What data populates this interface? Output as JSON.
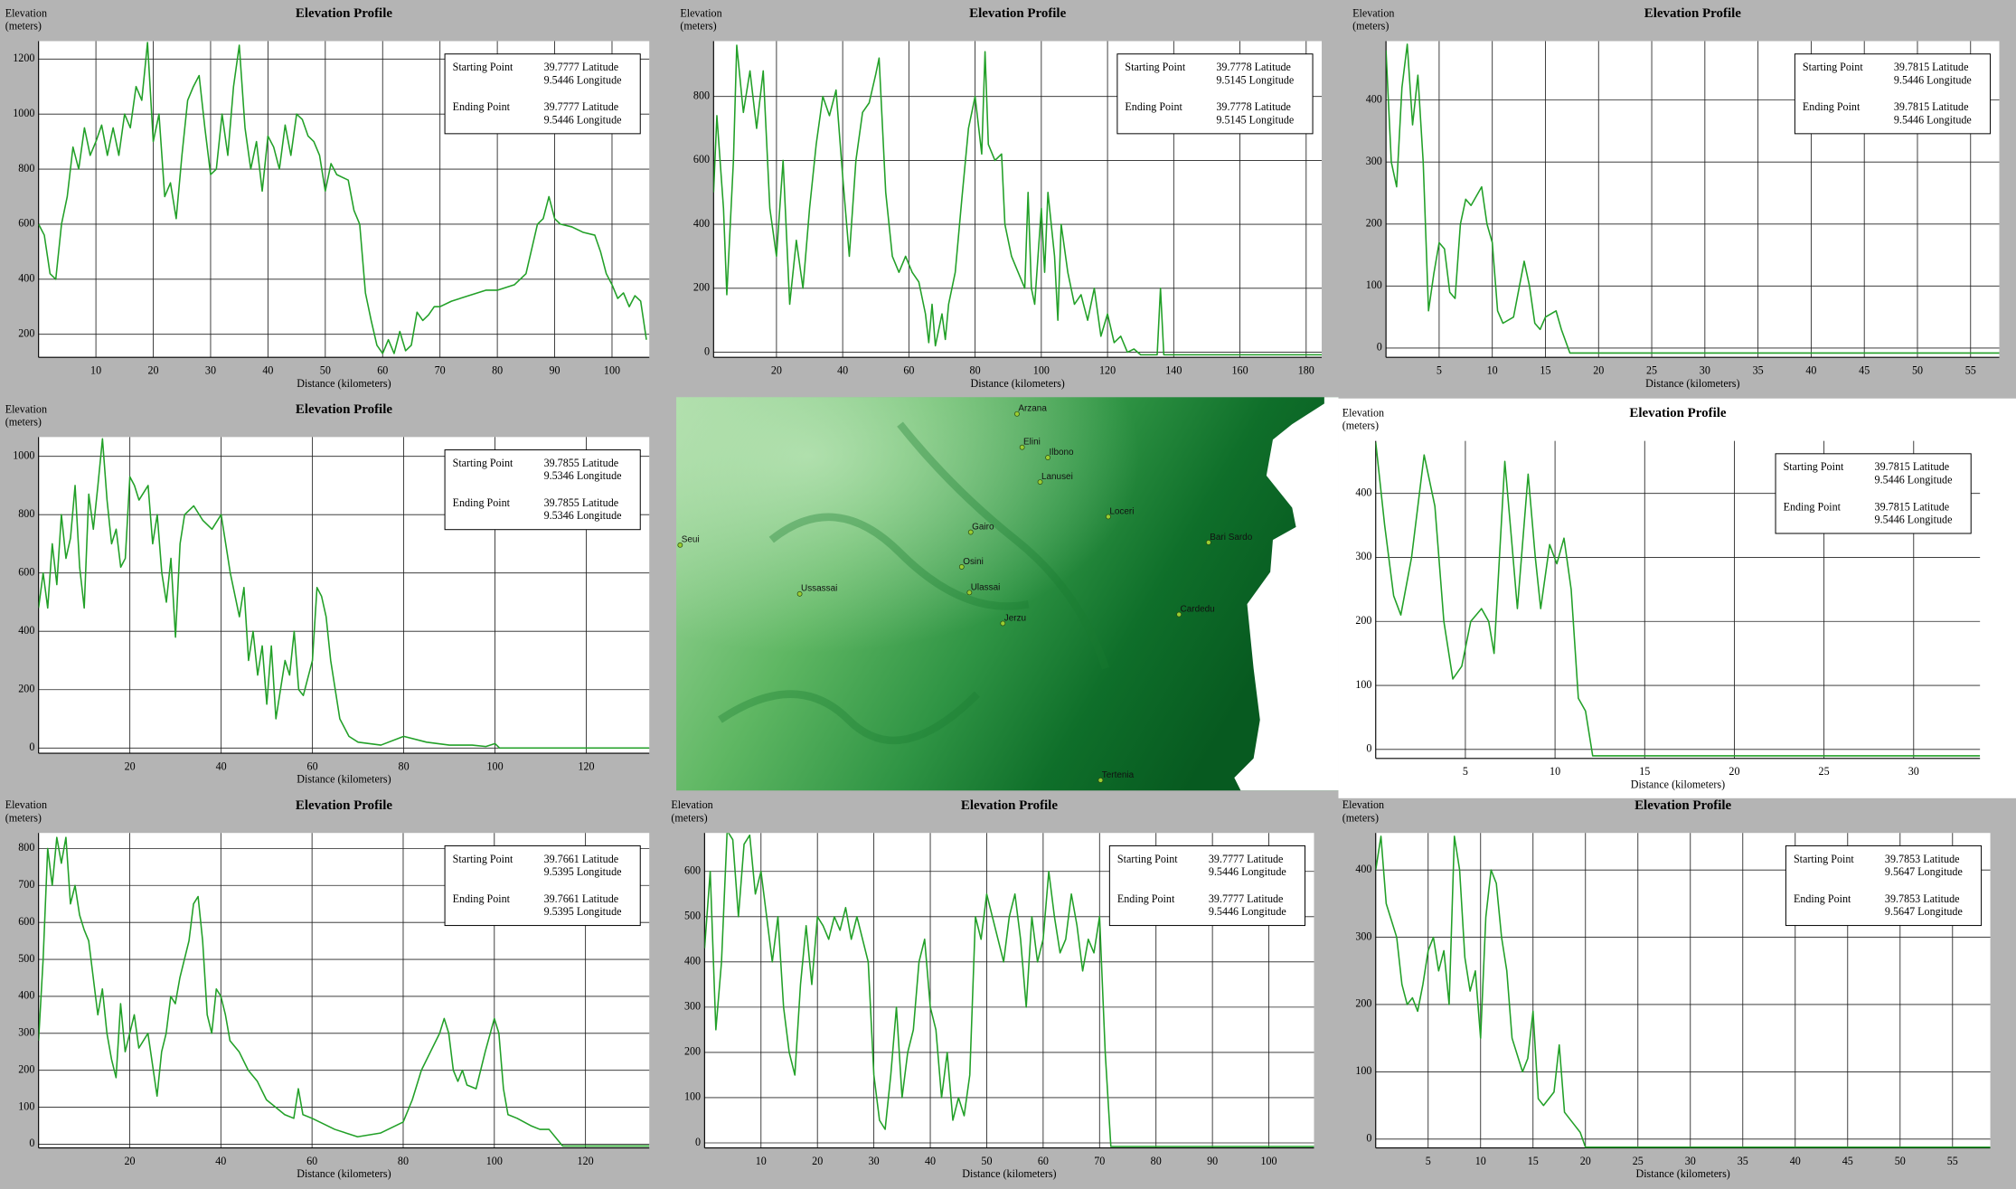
{
  "chart_data": [
    {
      "type": "line",
      "title": "Elevation Profile",
      "ylabel": [
        "Elevation",
        "(meters)"
      ],
      "xlabel": "Distance (kilometers)",
      "color": "#22a028",
      "grid": true,
      "info": {
        "start_label": "Starting Point",
        "start_lat": "39.7777 Latitude",
        "start_lon": "9.5446 Longitude",
        "end_label": "Ending Point",
        "end_lat": "39.7777 Latitude",
        "end_lon": "9.5446 Longitude"
      },
      "xlim": [
        0,
        106.5
      ],
      "xticks": [
        10,
        20,
        30,
        40,
        50,
        60,
        70,
        80,
        90,
        100
      ],
      "ylim": [
        116,
        1265
      ],
      "yticks": [
        200,
        400,
        600,
        800,
        1000,
        1200
      ],
      "x": [
        0,
        1,
        2,
        3,
        4,
        5,
        6,
        7,
        8,
        9,
        10,
        11,
        12,
        13,
        14,
        15,
        16,
        17,
        18,
        19,
        20,
        21,
        22,
        23,
        24,
        25,
        26,
        27,
        28,
        29,
        30,
        31,
        32,
        33,
        34,
        35,
        36,
        37,
        38,
        39,
        40,
        41,
        42,
        43,
        44,
        45,
        46,
        47,
        48,
        49,
        50,
        51,
        52,
        53,
        54,
        55,
        56,
        57,
        58,
        59,
        60,
        61,
        62,
        63,
        64,
        65,
        66,
        67,
        68,
        69,
        70,
        72,
        75,
        78,
        80,
        83,
        85,
        87,
        88,
        89,
        90,
        91,
        93,
        95,
        97,
        98,
        99,
        100,
        101,
        102,
        103,
        104,
        105,
        106
      ],
      "values": [
        600,
        560,
        420,
        400,
        600,
        700,
        880,
        800,
        950,
        850,
        900,
        960,
        850,
        950,
        850,
        1000,
        950,
        1100,
        1050,
        1260,
        900,
        1000,
        700,
        750,
        620,
        850,
        1050,
        1100,
        1140,
        950,
        780,
        800,
        1000,
        850,
        1100,
        1250,
        950,
        800,
        900,
        720,
        920,
        880,
        800,
        960,
        850,
        1000,
        980,
        920,
        900,
        850,
        720,
        820,
        780,
        770,
        760,
        650,
        600,
        350,
        250,
        160,
        130,
        180,
        130,
        210,
        140,
        160,
        280,
        250,
        270,
        300,
        300,
        320,
        340,
        360,
        360,
        380,
        420,
        600,
        620,
        700,
        620,
        600,
        590,
        570,
        560,
        500,
        420,
        380,
        330,
        350,
        300,
        340,
        320,
        180
      ]
    },
    {
      "type": "line",
      "title": "Elevation Profile",
      "ylabel": [
        "Elevation",
        "(meters)"
      ],
      "xlabel": "Distance (kilometers)",
      "color": "#22a028",
      "grid": true,
      "info": {
        "start_label": "Starting Point",
        "start_lat": "39.7778 Latitude",
        "start_lon": "9.5145 Longitude",
        "end_label": "Ending Point",
        "end_lat": "39.7778 Latitude",
        "end_lon": "9.5145 Longitude"
      },
      "xlim": [
        1,
        184.7
      ],
      "xticks": [
        20,
        40,
        60,
        80,
        100,
        120,
        140,
        160,
        180
      ],
      "ylim": [
        -16,
        973
      ],
      "yticks": [
        0,
        200,
        400,
        600,
        800
      ],
      "x": [
        1,
        2,
        4,
        5,
        7,
        8,
        10,
        12,
        14,
        16,
        18,
        20,
        22,
        24,
        26,
        28,
        30,
        32,
        34,
        36,
        38,
        40,
        42,
        44,
        46,
        48,
        50,
        51,
        53,
        55,
        57,
        59,
        61,
        63,
        65,
        66,
        67,
        68,
        70,
        71,
        72,
        74,
        76,
        78,
        80,
        82,
        83,
        84,
        86,
        88,
        89,
        91,
        93,
        95,
        96,
        97,
        98,
        100,
        101,
        102,
        104,
        105,
        106,
        108,
        110,
        112,
        114,
        116,
        118,
        120,
        122,
        124,
        126,
        128,
        130,
        135,
        136,
        137,
        184.7
      ],
      "values": [
        500,
        740,
        450,
        180,
        600,
        960,
        750,
        880,
        700,
        880,
        450,
        300,
        600,
        150,
        350,
        200,
        450,
        650,
        800,
        740,
        820,
        550,
        300,
        600,
        750,
        780,
        870,
        920,
        500,
        300,
        250,
        300,
        250,
        220,
        120,
        30,
        150,
        20,
        120,
        40,
        150,
        250,
        480,
        700,
        800,
        620,
        940,
        650,
        600,
        620,
        400,
        300,
        250,
        200,
        500,
        200,
        150,
        450,
        250,
        500,
        300,
        100,
        400,
        250,
        150,
        180,
        100,
        200,
        50,
        120,
        30,
        50,
        0,
        10,
        -8,
        -8,
        200,
        -8,
        -8
      ]
    },
    {
      "type": "line",
      "title": "Elevation Profile",
      "ylabel": [
        "Elevation",
        "(meters)"
      ],
      "xlabel": "Distance (kilometers)",
      "color": "#22a028",
      "grid": true,
      "info": {
        "start_label": "Starting Point",
        "start_lat": "39.7815 Latitude",
        "start_lon": "9.5446 Longitude",
        "end_label": "Ending Point",
        "end_lat": "39.7815 Latitude",
        "end_lon": "9.5446 Longitude"
      },
      "xlim": [
        0,
        57.7
      ],
      "xticks": [
        5,
        10,
        15,
        20,
        25,
        30,
        35,
        40,
        45,
        50,
        55
      ],
      "ylim": [
        -15,
        495
      ],
      "yticks": [
        0,
        100,
        200,
        300,
        400
      ],
      "x": [
        0,
        0.5,
        1,
        1.5,
        2,
        2.5,
        3,
        3.5,
        4,
        4.5,
        5,
        5.5,
        6,
        6.5,
        7,
        7.5,
        8,
        9,
        9.5,
        10,
        10.5,
        11,
        12,
        13,
        13.5,
        14,
        14.5,
        15,
        16,
        16.5,
        17.3,
        57.7
      ],
      "values": [
        480,
        300,
        260,
        420,
        490,
        360,
        440,
        300,
        60,
        120,
        170,
        160,
        90,
        80,
        200,
        240,
        230,
        260,
        200,
        170,
        60,
        40,
        50,
        140,
        100,
        40,
        30,
        50,
        60,
        30,
        -8,
        -8
      ]
    },
    {
      "type": "line",
      "title": "Elevation Profile",
      "ylabel": [
        "Elevation",
        "(meters)"
      ],
      "xlabel": "Distance (kilometers)",
      "color": "#22a028",
      "grid": true,
      "info": {
        "start_label": "Starting Point",
        "start_lat": "39.7855 Latitude",
        "start_lon": "9.5346 Longitude",
        "end_label": "Ending Point",
        "end_lat": "39.7855 Latitude",
        "end_lon": "9.5346 Longitude"
      },
      "xlim": [
        0,
        133.8
      ],
      "xticks": [
        20,
        40,
        60,
        80,
        100,
        120
      ],
      "ylim": [
        -18,
        1066
      ],
      "yticks": [
        0,
        200,
        400,
        600,
        800,
        1000
      ],
      "x": [
        0,
        1,
        2,
        3,
        4,
        5,
        6,
        7,
        8,
        9,
        10,
        11,
        12,
        13,
        14,
        15,
        16,
        17,
        18,
        19,
        20,
        21,
        22,
        24,
        25,
        26,
        27,
        28,
        29,
        30,
        31,
        32,
        34,
        36,
        38,
        40,
        41,
        42,
        44,
        45,
        46,
        47,
        48,
        49,
        50,
        51,
        52,
        53,
        54,
        55,
        56,
        57,
        58,
        60,
        61,
        62,
        63,
        64,
        65,
        66,
        68,
        70,
        75,
        80,
        85,
        90,
        95,
        98,
        100,
        101,
        133.8
      ],
      "values": [
        480,
        600,
        480,
        700,
        560,
        800,
        650,
        720,
        900,
        620,
        480,
        870,
        750,
        900,
        1060,
        850,
        700,
        750,
        620,
        650,
        930,
        900,
        850,
        900,
        700,
        800,
        600,
        500,
        650,
        380,
        700,
        800,
        830,
        780,
        750,
        800,
        700,
        600,
        450,
        550,
        300,
        400,
        250,
        350,
        150,
        350,
        100,
        200,
        300,
        250,
        400,
        200,
        180,
        300,
        550,
        520,
        450,
        300,
        200,
        100,
        40,
        20,
        10,
        40,
        20,
        10,
        10,
        5,
        15,
        0,
        0
      ]
    },
    {
      "type": "line",
      "title": "Elevation Profile",
      "ylabel": [
        "Elevation",
        "(meters)"
      ],
      "xlabel": "Distance (kilometers)",
      "color": "#22a028",
      "grid": true,
      "info": {
        "start_label": "Starting Point",
        "start_lat": "39.7815 Latitude",
        "start_lon": "9.5446 Longitude",
        "end_label": "Ending Point",
        "end_lat": "39.7815 Latitude",
        "end_lon": "9.5446 Longitude"
      },
      "xlim": [
        0,
        33.7
      ],
      "xticks": [
        5,
        10,
        15,
        20,
        25,
        30
      ],
      "ylim": [
        -14,
        482
      ],
      "yticks": [
        0,
        100,
        200,
        300,
        400
      ],
      "x": [
        0,
        0.5,
        1,
        1.4,
        2,
        2.7,
        3.3,
        3.8,
        4.3,
        4.8,
        5.3,
        5.9,
        6.3,
        6.6,
        7.2,
        7.6,
        7.9,
        8.5,
        8.9,
        9.2,
        9.7,
        10.1,
        10.5,
        10.9,
        11.3,
        11.7,
        12.1,
        33.7
      ],
      "values": [
        480,
        350,
        240,
        210,
        300,
        460,
        380,
        200,
        110,
        130,
        200,
        220,
        200,
        150,
        450,
        320,
        220,
        430,
        300,
        220,
        320,
        290,
        330,
        250,
        80,
        60,
        -10,
        -10
      ]
    },
    {
      "type": "line",
      "title": "Elevation Profile",
      "ylabel": [
        "Elevation",
        "(meters)"
      ],
      "xlabel": "Distance (kilometers)",
      "color": "#22a028",
      "grid": true,
      "info": {
        "start_label": "Starting Point",
        "start_lat": "39.7661 Latitude",
        "start_lon": "9.5395 Longitude",
        "end_label": "Ending Point",
        "end_lat": "39.7661 Latitude",
        "end_lon": "9.5395 Longitude"
      },
      "xlim": [
        0,
        134
      ],
      "xticks": [
        20,
        40,
        60,
        80,
        100,
        120
      ],
      "ylim": [
        -10,
        842
      ],
      "yticks": [
        0,
        100,
        200,
        300,
        400,
        500,
        600,
        700,
        800
      ],
      "x": [
        0,
        1,
        2,
        3,
        4,
        5,
        6,
        7,
        8,
        9,
        10,
        11,
        12,
        13,
        14,
        15,
        16,
        17,
        18,
        19,
        20,
        21,
        22,
        24,
        26,
        27,
        28,
        29,
        30,
        31,
        32,
        33,
        34,
        35,
        36,
        37,
        38,
        39,
        40,
        41,
        42,
        44,
        46,
        48,
        50,
        52,
        54,
        56,
        57,
        58,
        60,
        65,
        70,
        75,
        80,
        82,
        84,
        86,
        88,
        89,
        90,
        91,
        92,
        93,
        94,
        96,
        98,
        100,
        101,
        102,
        103,
        105,
        108,
        110,
        112,
        114,
        115,
        134
      ],
      "values": [
        280,
        500,
        800,
        700,
        830,
        760,
        830,
        650,
        700,
        620,
        580,
        550,
        450,
        350,
        420,
        300,
        230,
        180,
        380,
        250,
        300,
        350,
        260,
        300,
        130,
        250,
        300,
        400,
        380,
        450,
        500,
        550,
        650,
        670,
        550,
        350,
        300,
        420,
        400,
        350,
        280,
        250,
        200,
        170,
        120,
        100,
        80,
        70,
        150,
        80,
        70,
        40,
        20,
        30,
        60,
        120,
        200,
        250,
        300,
        340,
        300,
        200,
        170,
        200,
        160,
        150,
        250,
        340,
        300,
        150,
        80,
        70,
        50,
        40,
        40,
        10,
        -5,
        -5
      ]
    },
    {
      "type": "line",
      "title": "Elevation Profile",
      "ylabel": [
        "Elevation",
        "(meters)"
      ],
      "xlabel": "Distance (kilometers)",
      "color": "#22a028",
      "grid": true,
      "info": {
        "start_label": "Starting Point",
        "start_lat": "39.7777 Latitude",
        "start_lon": "9.5446 Longitude",
        "end_label": "Ending Point",
        "end_lat": "39.7777 Latitude",
        "end_lon": "9.5446 Longitude"
      },
      "xlim": [
        0,
        108
      ],
      "xticks": [
        10,
        20,
        30,
        40,
        50,
        60,
        70,
        80,
        90,
        100
      ],
      "ylim": [
        -11,
        685
      ],
      "yticks": [
        0,
        100,
        200,
        300,
        400,
        500,
        600
      ],
      "x": [
        0,
        1,
        2,
        3,
        4,
        5,
        6,
        7,
        8,
        9,
        10,
        11,
        12,
        13,
        14,
        15,
        16,
        17,
        18,
        19,
        20,
        21,
        22,
        23,
        24,
        25,
        26,
        27,
        28,
        29,
        30,
        31,
        32,
        33,
        34,
        35,
        36,
        37,
        38,
        39,
        40,
        41,
        42,
        43,
        44,
        45,
        46,
        47,
        48,
        49,
        50,
        51,
        52,
        53,
        54,
        55,
        56,
        57,
        58,
        59,
        60,
        61,
        62,
        63,
        64,
        65,
        66,
        67,
        68,
        69,
        70,
        71,
        72,
        108
      ],
      "values": [
        430,
        600,
        250,
        400,
        690,
        670,
        500,
        660,
        680,
        550,
        600,
        500,
        400,
        500,
        300,
        200,
        150,
        350,
        480,
        350,
        500,
        480,
        450,
        500,
        470,
        520,
        450,
        500,
        450,
        400,
        150,
        50,
        30,
        150,
        300,
        100,
        200,
        250,
        400,
        450,
        300,
        250,
        100,
        200,
        50,
        100,
        60,
        150,
        500,
        450,
        550,
        500,
        450,
        400,
        500,
        550,
        450,
        300,
        500,
        400,
        450,
        600,
        500,
        420,
        450,
        550,
        480,
        380,
        450,
        420,
        500,
        200,
        -8,
        -8
      ]
    },
    {
      "type": "line",
      "title": "Elevation Profile",
      "ylabel": [
        "Elevation",
        "(meters)"
      ],
      "xlabel": "Distance (kilometers)",
      "color": "#22a028",
      "grid": true,
      "info": {
        "start_label": "Starting Point",
        "start_lat": "39.7853 Latitude",
        "start_lon": "9.5647 Longitude",
        "end_label": "Ending Point",
        "end_lat": "39.7853 Latitude",
        "end_lon": "9.5647 Longitude"
      },
      "xlim": [
        0,
        58.6
      ],
      "xticks": [
        5,
        10,
        15,
        20,
        25,
        30,
        35,
        40,
        45,
        50,
        55
      ],
      "ylim": [
        -13,
        455
      ],
      "yticks": [
        0,
        100,
        200,
        300,
        400
      ],
      "x": [
        0,
        0.5,
        1,
        2,
        2.5,
        3,
        3.5,
        4,
        4.5,
        5,
        5.5,
        6,
        6.5,
        7,
        7.5,
        8,
        8.5,
        9,
        9.5,
        10,
        10.5,
        11,
        11.5,
        12,
        12.5,
        13,
        14,
        14.5,
        15,
        15.5,
        16,
        17,
        17.5,
        18,
        19,
        19.5,
        20,
        58.6
      ],
      "values": [
        400,
        450,
        350,
        300,
        230,
        200,
        210,
        190,
        230,
        280,
        300,
        250,
        280,
        200,
        450,
        400,
        270,
        220,
        250,
        150,
        330,
        400,
        380,
        300,
        250,
        150,
        100,
        120,
        190,
        60,
        50,
        70,
        140,
        40,
        20,
        10,
        -12,
        -12
      ]
    }
  ],
  "map": {
    "places": [
      "Arzana",
      "Elini",
      "Ilbono",
      "Lanusei",
      "Loceri",
      "Bari Sardo",
      "Gairo",
      "Osini",
      "Seui",
      "Ussassai",
      "Ulassai",
      "Cardedu",
      "Jerzu",
      "Tertenia"
    ]
  }
}
